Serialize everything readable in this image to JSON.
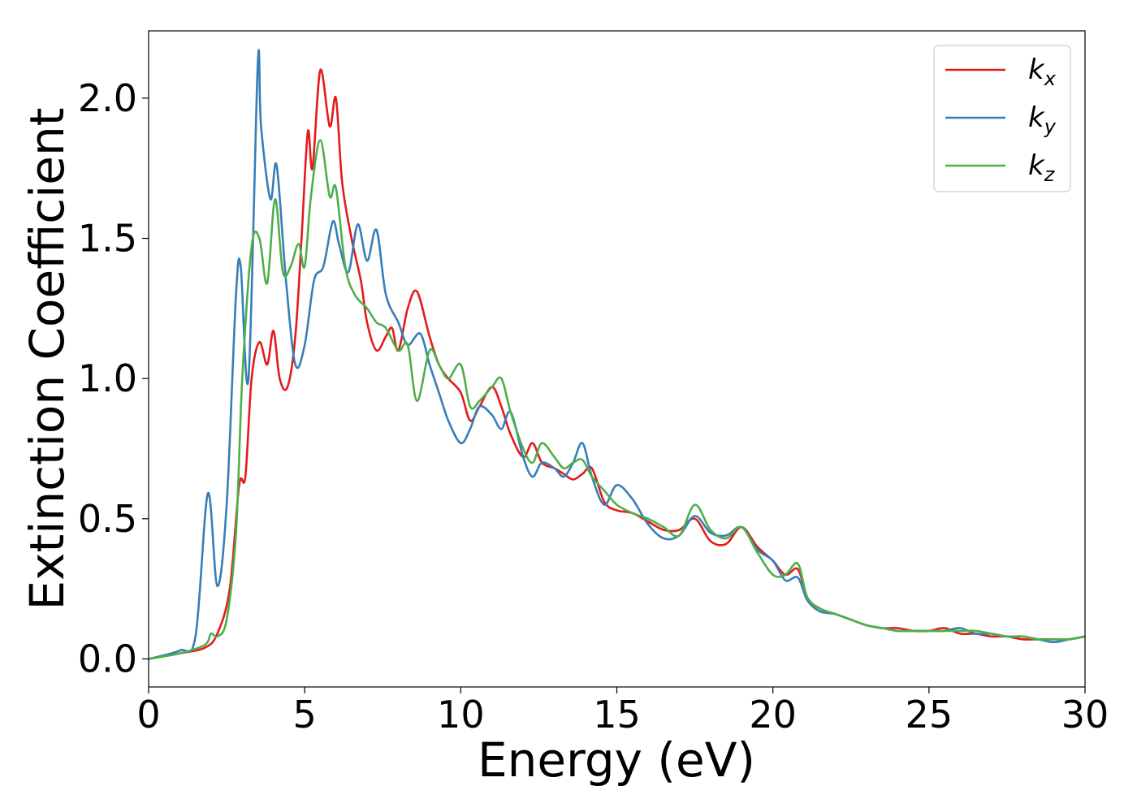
{
  "chart_data": {
    "type": "line",
    "xlabel": "Energy (eV)",
    "ylabel": "Extinction Coefficient",
    "xlim": [
      0,
      30
    ],
    "ylim": [
      -0.1,
      2.24
    ],
    "xticks": [
      0,
      5,
      10,
      15,
      20,
      25,
      30
    ],
    "xtick_labels": [
      "0",
      "5",
      "10",
      "15",
      "20",
      "25",
      "30"
    ],
    "yticks": [
      0.0,
      0.5,
      1.0,
      1.5,
      2.0
    ],
    "ytick_labels": [
      "0.0",
      "0.5",
      "1.0",
      "1.5",
      "2.0"
    ],
    "grid": false,
    "legend_position": "top-right",
    "series": [
      {
        "name": "k",
        "subscript": "x",
        "color": "#e41a1c",
        "x": [
          0,
          1,
          1.8,
          2.2,
          2.6,
          2.9,
          3.1,
          3.3,
          3.55,
          3.8,
          4.0,
          4.2,
          4.45,
          4.7,
          4.9,
          5.1,
          5.25,
          5.5,
          5.8,
          6.0,
          6.2,
          6.5,
          6.8,
          7.0,
          7.3,
          7.6,
          7.8,
          8.0,
          8.3,
          8.6,
          9.0,
          9.3,
          9.6,
          10.0,
          10.3,
          10.6,
          11.0,
          11.3,
          11.6,
          12.0,
          12.3,
          12.6,
          13.0,
          13.3,
          13.6,
          13.9,
          14.2,
          14.6,
          15.0,
          15.5,
          16.0,
          16.5,
          17.0,
          17.5,
          18.0,
          18.5,
          19.0,
          19.5,
          20.0,
          20.4,
          20.8,
          21.1,
          21.5,
          22.0,
          22.5,
          23.0,
          23.5,
          24.0,
          24.5,
          25.0,
          25.5,
          26.0,
          26.5,
          27.0,
          27.5,
          28.0,
          28.5,
          29.0,
          29.5,
          30
        ],
        "y": [
          0.0,
          0.02,
          0.04,
          0.09,
          0.25,
          0.62,
          0.65,
          1.0,
          1.13,
          1.05,
          1.17,
          1.0,
          0.97,
          1.15,
          1.5,
          1.88,
          1.75,
          2.1,
          1.9,
          2.0,
          1.7,
          1.5,
          1.35,
          1.2,
          1.1,
          1.15,
          1.18,
          1.1,
          1.25,
          1.31,
          1.15,
          1.05,
          1.0,
          0.95,
          0.85,
          0.9,
          0.97,
          0.9,
          0.8,
          0.72,
          0.77,
          0.7,
          0.68,
          0.66,
          0.64,
          0.66,
          0.68,
          0.56,
          0.53,
          0.52,
          0.49,
          0.46,
          0.46,
          0.5,
          0.42,
          0.41,
          0.47,
          0.4,
          0.35,
          0.3,
          0.32,
          0.22,
          0.18,
          0.16,
          0.14,
          0.12,
          0.11,
          0.11,
          0.1,
          0.1,
          0.11,
          0.09,
          0.09,
          0.08,
          0.08,
          0.07,
          0.07,
          0.07,
          0.07,
          0.08
        ]
      },
      {
        "name": "k",
        "subscript": "y",
        "color": "#377eb8",
        "x": [
          0,
          1,
          1.5,
          1.9,
          2.2,
          2.5,
          2.8,
          2.95,
          3.2,
          3.5,
          3.6,
          3.9,
          4.1,
          4.4,
          4.7,
          5.0,
          5.3,
          5.6,
          5.9,
          6.1,
          6.4,
          6.7,
          7.0,
          7.3,
          7.6,
          8.0,
          8.3,
          8.7,
          9.0,
          9.3,
          9.6,
          10.0,
          10.3,
          10.6,
          11.0,
          11.3,
          11.6,
          12.0,
          12.3,
          12.6,
          13.0,
          13.3,
          13.6,
          13.9,
          14.2,
          14.6,
          15.0,
          15.5,
          16.0,
          16.5,
          17.0,
          17.5,
          18.0,
          18.5,
          19.0,
          19.5,
          20.0,
          20.4,
          20.8,
          21.1,
          21.5,
          22.0,
          22.5,
          23.0,
          23.5,
          24.0,
          24.5,
          25.0,
          25.5,
          26.0,
          26.5,
          27.0,
          27.5,
          28.0,
          28.5,
          29.0,
          29.5,
          30
        ],
        "y": [
          0.0,
          0.03,
          0.08,
          0.59,
          0.26,
          0.55,
          1.3,
          1.4,
          1.0,
          2.13,
          1.9,
          1.64,
          1.76,
          1.35,
          1.05,
          1.12,
          1.35,
          1.4,
          1.56,
          1.48,
          1.38,
          1.55,
          1.42,
          1.53,
          1.3,
          1.2,
          1.12,
          1.16,
          1.05,
          0.95,
          0.85,
          0.77,
          0.82,
          0.9,
          0.87,
          0.82,
          0.88,
          0.72,
          0.65,
          0.7,
          0.68,
          0.65,
          0.7,
          0.77,
          0.65,
          0.55,
          0.62,
          0.57,
          0.48,
          0.43,
          0.44,
          0.51,
          0.45,
          0.44,
          0.47,
          0.39,
          0.35,
          0.28,
          0.29,
          0.21,
          0.17,
          0.16,
          0.14,
          0.12,
          0.11,
          0.1,
          0.1,
          0.1,
          0.1,
          0.11,
          0.09,
          0.09,
          0.08,
          0.08,
          0.07,
          0.06,
          0.07,
          0.08
        ]
      },
      {
        "name": "k",
        "subscript": "z",
        "color": "#4daf4a",
        "x": [
          0,
          1,
          1.8,
          2.0,
          2.2,
          2.5,
          2.8,
          3.0,
          3.3,
          3.55,
          3.8,
          4.05,
          4.3,
          4.55,
          4.8,
          5.0,
          5.2,
          5.5,
          5.8,
          6.0,
          6.3,
          6.6,
          7.0,
          7.3,
          7.6,
          8.0,
          8.3,
          8.6,
          9.0,
          9.3,
          9.6,
          10.0,
          10.3,
          10.6,
          11.0,
          11.3,
          11.6,
          12.0,
          12.3,
          12.6,
          13.0,
          13.3,
          13.6,
          13.9,
          14.2,
          14.6,
          15.0,
          15.5,
          16.0,
          16.5,
          17.0,
          17.5,
          18.0,
          18.5,
          19.0,
          19.5,
          20.0,
          20.4,
          20.8,
          21.1,
          21.5,
          22.0,
          22.5,
          23.0,
          23.5,
          24.0,
          24.5,
          25.0,
          25.5,
          26.0,
          26.5,
          27.0,
          27.5,
          28.0,
          28.5,
          29.0,
          29.5,
          30
        ],
        "y": [
          0.0,
          0.02,
          0.05,
          0.09,
          0.08,
          0.14,
          0.45,
          1.0,
          1.47,
          1.5,
          1.34,
          1.64,
          1.38,
          1.4,
          1.48,
          1.4,
          1.65,
          1.85,
          1.65,
          1.68,
          1.4,
          1.3,
          1.25,
          1.2,
          1.18,
          1.1,
          1.12,
          0.92,
          1.1,
          1.05,
          1.0,
          1.05,
          0.9,
          0.92,
          0.97,
          1.0,
          0.88,
          0.75,
          0.7,
          0.77,
          0.72,
          0.68,
          0.7,
          0.71,
          0.65,
          0.6,
          0.55,
          0.52,
          0.5,
          0.47,
          0.44,
          0.55,
          0.46,
          0.43,
          0.47,
          0.38,
          0.3,
          0.3,
          0.34,
          0.22,
          0.18,
          0.16,
          0.14,
          0.12,
          0.11,
          0.1,
          0.1,
          0.1,
          0.1,
          0.1,
          0.1,
          0.09,
          0.08,
          0.08,
          0.07,
          0.07,
          0.07,
          0.08
        ]
      }
    ]
  }
}
